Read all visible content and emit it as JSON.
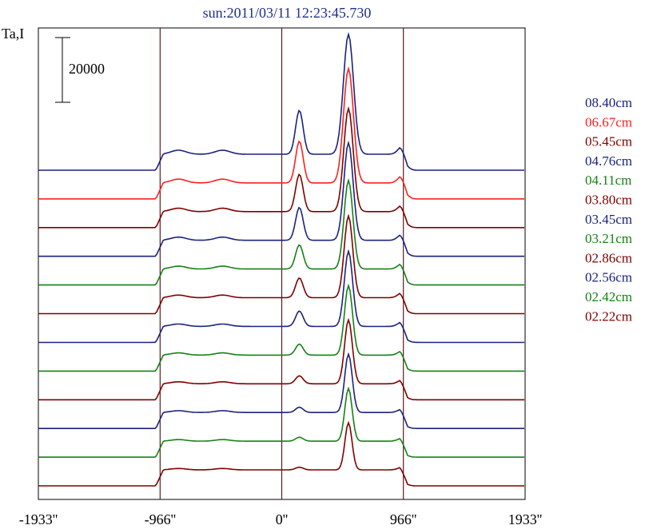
{
  "chart_data": {
    "type": "line",
    "title": "sun:2011/03/11 12:23:45.730",
    "title_color": "#1e2f8a",
    "ylabel": "Ta,I",
    "scale_bar_label": "20000",
    "x_tick_labels": [
      "-1933''",
      "-966''",
      "0''",
      "966''",
      "1933''"
    ],
    "x_ticks": [
      -1933,
      -966,
      0,
      966,
      1933
    ],
    "xlim": [
      -1933,
      1933
    ],
    "solar_limb": 966,
    "grid_lines_color": "#5a1e1e",
    "series": [
      {
        "name": "08.40cm",
        "color": "#1a237e",
        "amp": 1.0,
        "feat": 1.0
      },
      {
        "name": "06.67cm",
        "color": "#ff2020",
        "amp": 0.95,
        "feat": 0.95
      },
      {
        "name": "05.45cm",
        "color": "#800000",
        "amp": 0.85,
        "feat": 0.85
      },
      {
        "name": "04.76cm",
        "color": "#1a237e",
        "amp": 0.8,
        "feat": 0.75
      },
      {
        "name": "04.11cm",
        "color": "#168016",
        "amp": 0.72,
        "feat": 0.55
      },
      {
        "name": "03.80cm",
        "color": "#800000",
        "amp": 0.66,
        "feat": 0.45
      },
      {
        "name": "03.45cm",
        "color": "#1a237e",
        "amp": 0.6,
        "feat": 0.35
      },
      {
        "name": "03.21cm",
        "color": "#168016",
        "amp": 0.55,
        "feat": 0.25
      },
      {
        "name": "02.86cm",
        "color": "#800000",
        "amp": 0.5,
        "feat": 0.18
      },
      {
        "name": "02.56cm",
        "color": "#1a237e",
        "amp": 0.45,
        "feat": 0.12
      },
      {
        "name": "02.42cm",
        "color": "#168016",
        "amp": 0.4,
        "feat": 0.09
      },
      {
        "name": "02.22cm",
        "color": "#800000",
        "amp": 0.35,
        "feat": 0.06
      }
    ]
  }
}
